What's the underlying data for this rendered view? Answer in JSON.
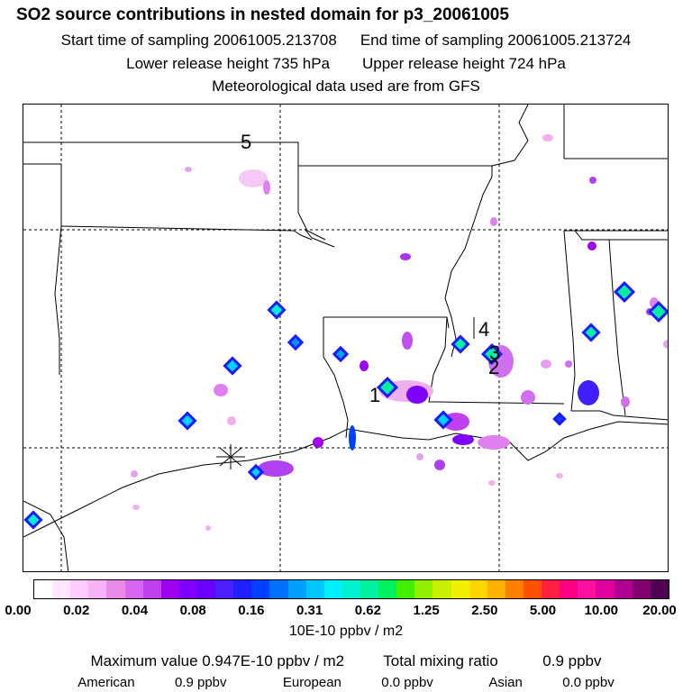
{
  "header": {
    "title": "SO2 source contributions in nested domain for p3_20061005",
    "start_label": "Start time of sampling 20061005.213708",
    "end_label": "End time of sampling 20061005.213724",
    "lower_label": "Lower release height  735 hPa",
    "upper_label": "Upper release height  724 hPa",
    "met_label": "Meteorological data used are from GFS"
  },
  "map": {
    "site_labels": [
      "5",
      "4",
      "3",
      "2",
      "1"
    ],
    "marker": "asterisk-receptor"
  },
  "colorbar": {
    "colors": [
      "#ffffff",
      "#ffe6ff",
      "#ffccff",
      "#f5b3f5",
      "#e68ae6",
      "#d966f0",
      "#c040f0",
      "#a000f0",
      "#8000ff",
      "#6a00ff",
      "#4a20ff",
      "#2020ff",
      "#0040ff",
      "#0070ff",
      "#00a0ff",
      "#00c8ff",
      "#00f0ff",
      "#00f0d0",
      "#00f0a0",
      "#00f060",
      "#40f000",
      "#90f000",
      "#c8f000",
      "#f0f000",
      "#ffd700",
      "#ffb000",
      "#ff8000",
      "#ff5000",
      "#ff2040",
      "#ff0080",
      "#ff10a0",
      "#e000a0",
      "#b00090",
      "#800070",
      "#500050"
    ],
    "tick_labels": [
      "0.00",
      "0.02",
      "0.04",
      "0.08",
      "0.16",
      "0.31",
      "0.62",
      "1.25",
      "2.50",
      "5.00",
      "10.00",
      "20.00"
    ],
    "units": "10E-10 ppbv / m2"
  },
  "footer": {
    "max_label": "Maximum value  0.947E-10 ppbv / m2",
    "total_label": "Total mixing ratio",
    "total_value": "0.9 ppbv",
    "american_label": "American",
    "american_value": "0.9 ppbv",
    "european_label": "European",
    "european_value": "0.0 ppbv",
    "asian_label": "Asian",
    "asian_value": "0.0 ppbv"
  }
}
